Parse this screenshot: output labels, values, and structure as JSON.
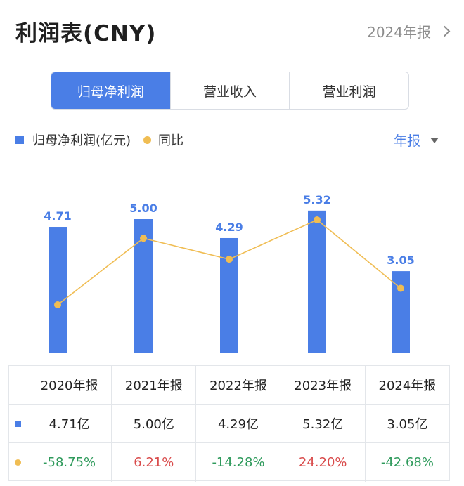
{
  "header": {
    "title": "利润表(CNY)",
    "period": "2024年报"
  },
  "tabs": [
    {
      "label": "归母净利润",
      "active": true
    },
    {
      "label": "营业收入",
      "active": false
    },
    {
      "label": "营业利润",
      "active": false
    }
  ],
  "legend": {
    "bar_label": "归母净利润(亿元)",
    "line_label": "同比"
  },
  "period_selector": "年报",
  "colors": {
    "bar": "#4a7ee6",
    "line": "#f0bd53",
    "negative": "#2e9a5b",
    "positive": "#d94b4b"
  },
  "chart_data": {
    "type": "bar",
    "categories": [
      "2020年报",
      "2021年报",
      "2022年报",
      "2023年报",
      "2024年报"
    ],
    "series": [
      {
        "name": "归母净利润(亿元)",
        "type": "bar",
        "values": [
          4.71,
          5.0,
          4.29,
          5.32,
          3.05
        ],
        "labels": [
          "4.71",
          "5.00",
          "4.29",
          "5.32",
          "3.05"
        ]
      },
      {
        "name": "同比",
        "type": "line",
        "values": [
          -58.75,
          6.21,
          -14.28,
          24.2,
          -42.68
        ]
      }
    ]
  },
  "table": {
    "headers": [
      "2020年报",
      "2021年报",
      "2022年报",
      "2023年报",
      "2024年报"
    ],
    "profit_row": [
      "4.71亿",
      "5.00亿",
      "4.29亿",
      "5.32亿",
      "3.05亿"
    ],
    "yoy_row": [
      "-58.75%",
      "6.21%",
      "-14.28%",
      "24.20%",
      "-42.68%"
    ]
  }
}
